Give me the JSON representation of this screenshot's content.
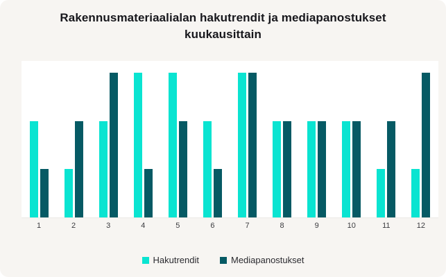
{
  "card": {
    "background": "#F7F5F2",
    "plot_background": "#FFFFFF"
  },
  "title": {
    "text": "Rakennusmateriaalialan hakutrendit ja mediapanostukset kuukausittain",
    "line1": "Rakennusmateriaalialan hakutrendit ja mediapanostukset",
    "line2": "kuukausittain"
  },
  "chart_data": {
    "type": "bar",
    "title": "Rakennusmateriaalialan hakutrendit ja mediapanostukset kuukausittain",
    "categories": [
      "1",
      "2",
      "3",
      "4",
      "5",
      "6",
      "7",
      "8",
      "9",
      "10",
      "11",
      "12"
    ],
    "series": [
      {
        "name": "Hakutrendit",
        "key": "hakutrendit",
        "color": "#0AE4D1",
        "values": [
          20,
          10,
          20,
          30,
          30,
          20,
          30,
          20,
          20,
          20,
          10,
          10
        ]
      },
      {
        "name": "Mediapanostukset",
        "key": "mediapanostukset",
        "color": "#065A64",
        "values": [
          10,
          20,
          30,
          10,
          20,
          10,
          30,
          20,
          20,
          20,
          20,
          30
        ]
      }
    ],
    "xlabel": "",
    "ylabel": "",
    "ylim": [
      0,
      32.5
    ],
    "y_axis_visible": false,
    "grid": false,
    "legend_position": "bottom"
  }
}
